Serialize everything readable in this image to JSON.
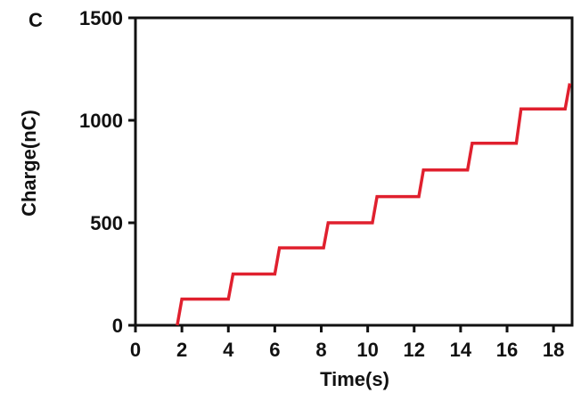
{
  "chart_data": {
    "type": "line",
    "panel_label": "C",
    "xlabel": "Time(s)",
    "ylabel": "Charge(nC)",
    "xlim": [
      0,
      18.8
    ],
    "ylim": [
      0,
      1500
    ],
    "x_ticks": [
      0,
      2,
      4,
      6,
      8,
      10,
      12,
      14,
      16,
      18
    ],
    "x_tick_labels": [
      "0",
      "2",
      "4",
      "6",
      "8",
      "10",
      "12",
      "14",
      "16",
      "18"
    ],
    "y_ticks": [
      0,
      500,
      1000,
      1500
    ],
    "y_tick_labels": [
      "0",
      "500",
      "1000",
      "1500"
    ],
    "grid": false,
    "line_color": "#e0202e",
    "series": [
      {
        "x": [
          1.8,
          2.0,
          4.0,
          4.2,
          6.0,
          6.2,
          8.1,
          8.3,
          10.2,
          10.4,
          12.2,
          12.4,
          14.3,
          14.5,
          16.4,
          16.6,
          18.5,
          18.7
        ],
        "y": [
          0,
          128,
          128,
          250,
          250,
          378,
          378,
          500,
          500,
          628,
          628,
          758,
          758,
          888,
          888,
          1055,
          1055,
          1180
        ]
      }
    ]
  }
}
